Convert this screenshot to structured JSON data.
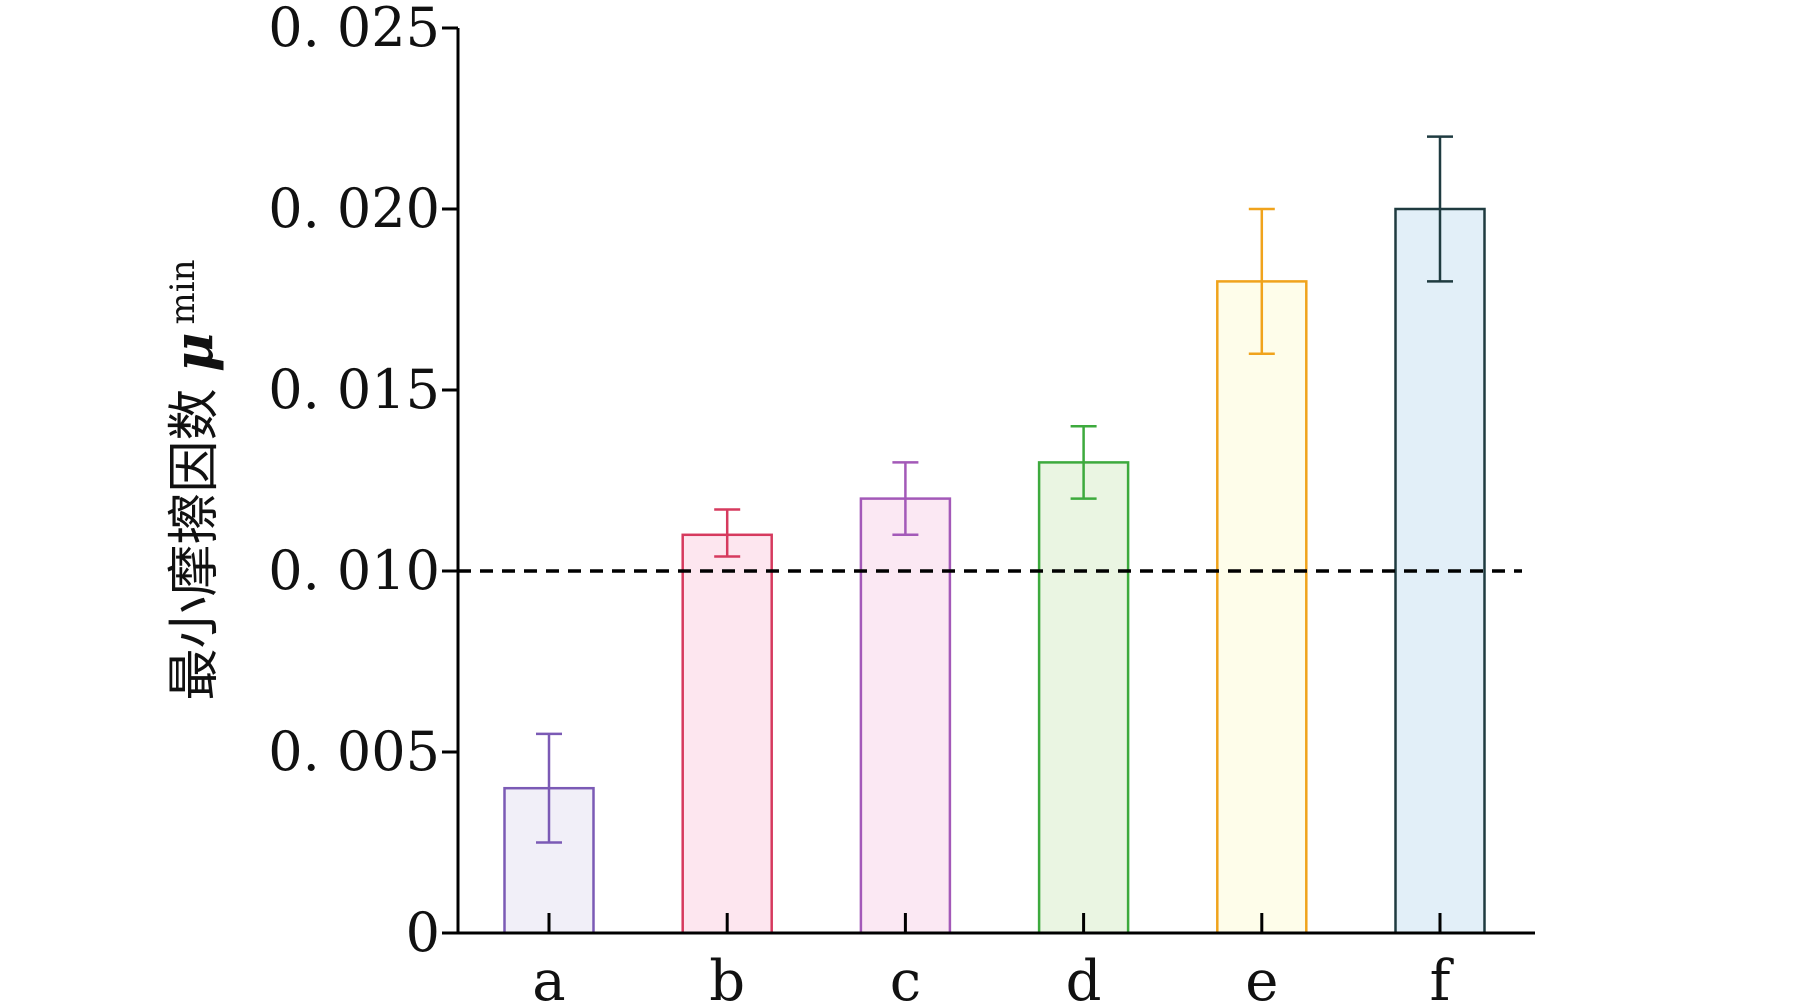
{
  "chart_data": {
    "type": "bar",
    "categories": [
      "a",
      "b",
      "c",
      "d",
      "e",
      "f"
    ],
    "values": [
      0.004,
      0.011,
      0.012,
      0.013,
      0.018,
      0.02
    ],
    "error_low": [
      0.0025,
      0.0104,
      0.011,
      0.012,
      0.016,
      0.018
    ],
    "error_high": [
      0.0055,
      0.0117,
      0.013,
      0.014,
      0.02,
      0.022
    ],
    "bar_colors": [
      "#7b5ab5",
      "#d63a5e",
      "#a359b8",
      "#3daa3d",
      "#f0a31c",
      "#1f3b40"
    ],
    "bar_fills": [
      "#f1eff8",
      "#fde6ef",
      "#fbe8f3",
      "#eaf5e2",
      "#fefdea",
      "#e2eff8"
    ],
    "reference_line": 0.01,
    "ylim": [
      0,
      0.025
    ],
    "yticks": [
      0,
      0.005,
      0.01,
      0.015,
      0.02,
      0.025
    ],
    "ytick_labels": [
      "0",
      "0. 005",
      "0. 010",
      "0. 015",
      "0. 020",
      "0. 025"
    ],
    "ylabel": "最小摩擦因数",
    "ylabel_symbol": "μ",
    "ylabel_subscript": "min",
    "xlabel": "",
    "title": ""
  }
}
